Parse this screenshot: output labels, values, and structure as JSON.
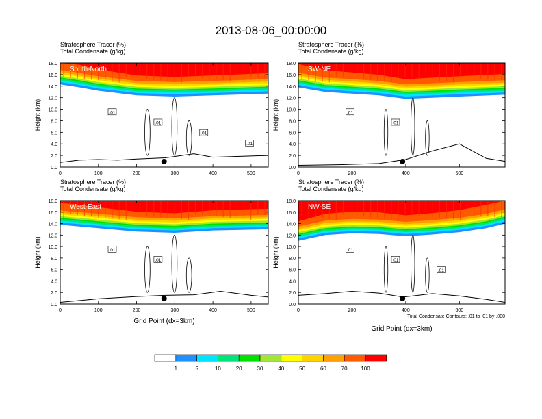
{
  "title": "2013-08-06_00:00:00",
  "colorbar": {
    "colors": [
      "#ffffff",
      "#1e90ff",
      "#00e5ff",
      "#00e57a",
      "#00e100",
      "#a0e632",
      "#ffff00",
      "#ffd200",
      "#ffa000",
      "#ff5a00",
      "#ff0000"
    ],
    "labels": [
      "1",
      "5",
      "10",
      "20",
      "30",
      "40",
      "50",
      "60",
      "70",
      "100"
    ]
  },
  "footnote": "Total Condensate Contours: .01 to .01 by .000",
  "chart_data": [
    {
      "type": "heatmap",
      "panel_label": "South-North",
      "subtitle_line1": "Stratosphere Tracer   (%)",
      "subtitle_line2": "Total Condensate   (g/kg)",
      "ylabel": "Height (km)",
      "xlabel": "",
      "xlim": [
        0,
        545
      ],
      "ylim": [
        0,
        18
      ],
      "xticks": [
        "0",
        "100",
        "200",
        "300",
        "400",
        "500"
      ],
      "yticks": [
        "0.0",
        "2.0",
        "4.0",
        "6.0",
        "8.0",
        "10.0",
        "12.0",
        "14.0",
        "16.0",
        "18.0"
      ],
      "tracer_base_km": [
        [
          0,
          14.3
        ],
        [
          50,
          13.8
        ],
        [
          100,
          13.2
        ],
        [
          150,
          12.8
        ],
        [
          200,
          12.4
        ],
        [
          250,
          12.3
        ],
        [
          300,
          12.2
        ],
        [
          400,
          12.4
        ],
        [
          545,
          12.7
        ]
      ],
      "terrain_km": [
        [
          0,
          0.8
        ],
        [
          50,
          1.2
        ],
        [
          100,
          1.3
        ],
        [
          150,
          1.2
        ],
        [
          200,
          1.4
        ],
        [
          275,
          1.6
        ],
        [
          350,
          2.3
        ],
        [
          400,
          1.7
        ],
        [
          545,
          2.0
        ]
      ],
      "contour_labels": [
        ".01",
        ".01",
        ".01",
        ".01"
      ],
      "marker_x": 272
    },
    {
      "type": "heatmap",
      "panel_label": "SW-NE",
      "subtitle_line1": "Stratosphere Tracer   (%)",
      "subtitle_line2": "Total Condensate   (g/kg)",
      "ylabel": "Height (km)",
      "xlabel": "",
      "xlim": [
        0,
        770
      ],
      "ylim": [
        0,
        18
      ],
      "xticks": [
        "0",
        "200",
        "400",
        "600"
      ],
      "yticks": [
        "0.0",
        "2.0",
        "4.0",
        "6.0",
        "8.0",
        "10.0",
        "12.0",
        "14.0",
        "16.0",
        "18.0"
      ],
      "tracer_base_km": [
        [
          0,
          13.8
        ],
        [
          100,
          13.0
        ],
        [
          200,
          12.7
        ],
        [
          300,
          12.4
        ],
        [
          400,
          11.8
        ],
        [
          500,
          12.0
        ],
        [
          600,
          12.2
        ],
        [
          770,
          12.5
        ]
      ],
      "terrain_km": [
        [
          0,
          0.3
        ],
        [
          150,
          0.4
        ],
        [
          300,
          0.6
        ],
        [
          400,
          1.3
        ],
        [
          500,
          2.8
        ],
        [
          600,
          4.0
        ],
        [
          700,
          1.5
        ],
        [
          770,
          1.0
        ]
      ],
      "contour_labels": [
        ".01",
        ".01"
      ],
      "marker_x": 388
    },
    {
      "type": "heatmap",
      "panel_label": "West-East",
      "subtitle_line1": "Stratosphere Tracer   (%)",
      "subtitle_line2": "Total Condensate   (g/kg)",
      "ylabel": "Height (km)",
      "xlabel": "Grid Point (dx=3km)",
      "xlim": [
        0,
        545
      ],
      "ylim": [
        0,
        18
      ],
      "xticks": [
        "0",
        "100",
        "200",
        "300",
        "400",
        "500"
      ],
      "yticks": [
        "0.0",
        "2.0",
        "4.0",
        "6.0",
        "8.0",
        "10.0",
        "12.0",
        "14.0",
        "16.0",
        "18.0"
      ],
      "tracer_base_km": [
        [
          0,
          13.8
        ],
        [
          100,
          13.2
        ],
        [
          200,
          12.6
        ],
        [
          300,
          12.4
        ],
        [
          400,
          12.8
        ],
        [
          545,
          13.0
        ]
      ],
      "terrain_km": [
        [
          0,
          0.3
        ],
        [
          100,
          0.9
        ],
        [
          200,
          1.3
        ],
        [
          275,
          1.5
        ],
        [
          350,
          1.6
        ],
        [
          420,
          2.2
        ],
        [
          500,
          1.5
        ],
        [
          545,
          1.2
        ]
      ],
      "contour_labels": [
        ".01",
        ".01"
      ],
      "marker_x": 272
    },
    {
      "type": "heatmap",
      "panel_label": "NW-SE",
      "subtitle_line1": "Stratosphere Tracer   (%)",
      "subtitle_line2": "Total Condensate   (g/kg)",
      "ylabel": "Height (km)",
      "xlabel": "Grid Point (dx=3km)",
      "xlim": [
        0,
        770
      ],
      "ylim": [
        0,
        18
      ],
      "xticks": [
        "0",
        "200",
        "400",
        "600"
      ],
      "yticks": [
        "0.0",
        "2.0",
        "4.0",
        "6.0",
        "8.0",
        "10.0",
        "12.0",
        "14.0",
        "16.0",
        "18.0"
      ],
      "tracer_base_km": [
        [
          0,
          11.0
        ],
        [
          100,
          12.0
        ],
        [
          200,
          12.3
        ],
        [
          300,
          12.2
        ],
        [
          400,
          11.8
        ],
        [
          500,
          12.1
        ],
        [
          600,
          12.5
        ],
        [
          700,
          13.2
        ],
        [
          770,
          14.0
        ]
      ],
      "terrain_km": [
        [
          0,
          1.5
        ],
        [
          100,
          1.8
        ],
        [
          200,
          2.2
        ],
        [
          300,
          1.9
        ],
        [
          390,
          1.2
        ],
        [
          500,
          1.8
        ],
        [
          600,
          1.4
        ],
        [
          700,
          0.8
        ],
        [
          770,
          0.3
        ]
      ],
      "contour_labels": [
        ".01",
        ".01",
        ".01"
      ],
      "marker_x": 388
    }
  ]
}
